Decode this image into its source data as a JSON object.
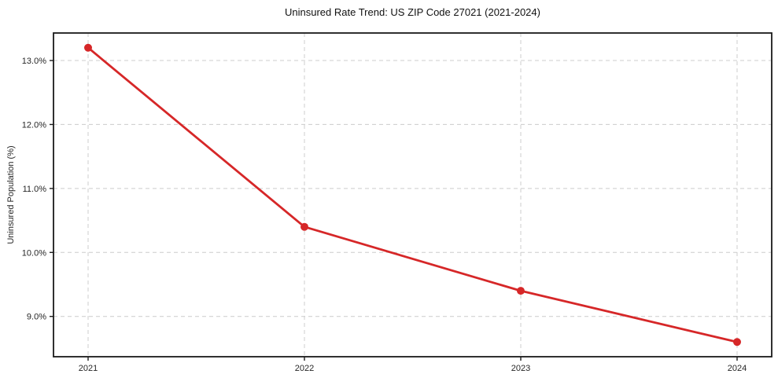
{
  "chart_data": {
    "type": "line",
    "title": "Uninsured Rate Trend: US ZIP Code 27021 (2021-2024)",
    "xlabel": "",
    "ylabel": "Uninsured Population (%)",
    "x": [
      2021,
      2022,
      2023,
      2024
    ],
    "x_tick_labels": [
      "2021",
      "2022",
      "2023",
      "2024"
    ],
    "values": [
      13.2,
      10.4,
      9.4,
      8.6
    ],
    "y_ticks": [
      9.0,
      10.0,
      11.0,
      12.0,
      13.0
    ],
    "y_tick_labels": [
      "9.0%",
      "10.0%",
      "11.0%",
      "12.0%",
      "13.0%"
    ],
    "xlim": [
      2020.84,
      2024.16
    ],
    "ylim": [
      8.37,
      13.43
    ],
    "grid": true,
    "grid_style": "dashed",
    "legend": "none",
    "colors": {
      "line": "#d62728",
      "marker": "#d62728",
      "grid": "#cccccc",
      "spine": "#1a1a1a",
      "tick": "#1a1a1a",
      "text": "#262626"
    }
  }
}
